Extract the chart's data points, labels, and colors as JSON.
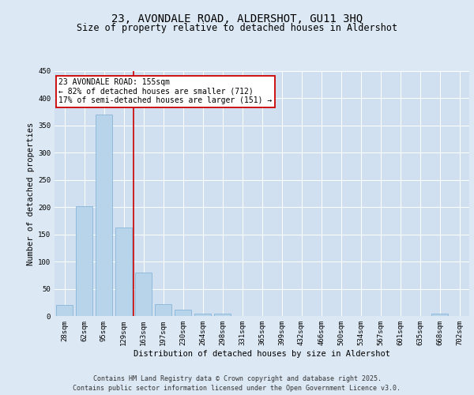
{
  "title": "23, AVONDALE ROAD, ALDERSHOT, GU11 3HQ",
  "subtitle": "Size of property relative to detached houses in Aldershot",
  "xlabel": "Distribution of detached houses by size in Aldershot",
  "ylabel": "Number of detached properties",
  "categories": [
    "28sqm",
    "62sqm",
    "95sqm",
    "129sqm",
    "163sqm",
    "197sqm",
    "230sqm",
    "264sqm",
    "298sqm",
    "331sqm",
    "365sqm",
    "399sqm",
    "432sqm",
    "466sqm",
    "500sqm",
    "534sqm",
    "567sqm",
    "601sqm",
    "635sqm",
    "668sqm",
    "702sqm"
  ],
  "values": [
    20,
    202,
    370,
    162,
    80,
    22,
    12,
    4,
    5,
    0,
    0,
    0,
    0,
    0,
    0,
    0,
    0,
    0,
    0,
    5,
    0
  ],
  "bar_color": "#b8d4ea",
  "bar_edge_color": "#7aaed4",
  "red_line_index": 3.5,
  "red_line_color": "#cc0000",
  "annotation_text": "23 AVONDALE ROAD: 155sqm\n← 82% of detached houses are smaller (712)\n17% of semi-detached houses are larger (151) →",
  "annotation_box_facecolor": "#ffffff",
  "annotation_box_edgecolor": "#cc0000",
  "ylim": [
    0,
    450
  ],
  "yticks": [
    0,
    50,
    100,
    150,
    200,
    250,
    300,
    350,
    400,
    450
  ],
  "background_color": "#dce8f4",
  "plot_bg_color": "#d0e0f0",
  "grid_color": "#ffffff",
  "footer_line1": "Contains HM Land Registry data © Crown copyright and database right 2025.",
  "footer_line2": "Contains public sector information licensed under the Open Government Licence v3.0.",
  "title_fontsize": 10,
  "subtitle_fontsize": 8.5,
  "axis_label_fontsize": 7.5,
  "tick_fontsize": 6.5,
  "annotation_fontsize": 7,
  "footer_fontsize": 6
}
